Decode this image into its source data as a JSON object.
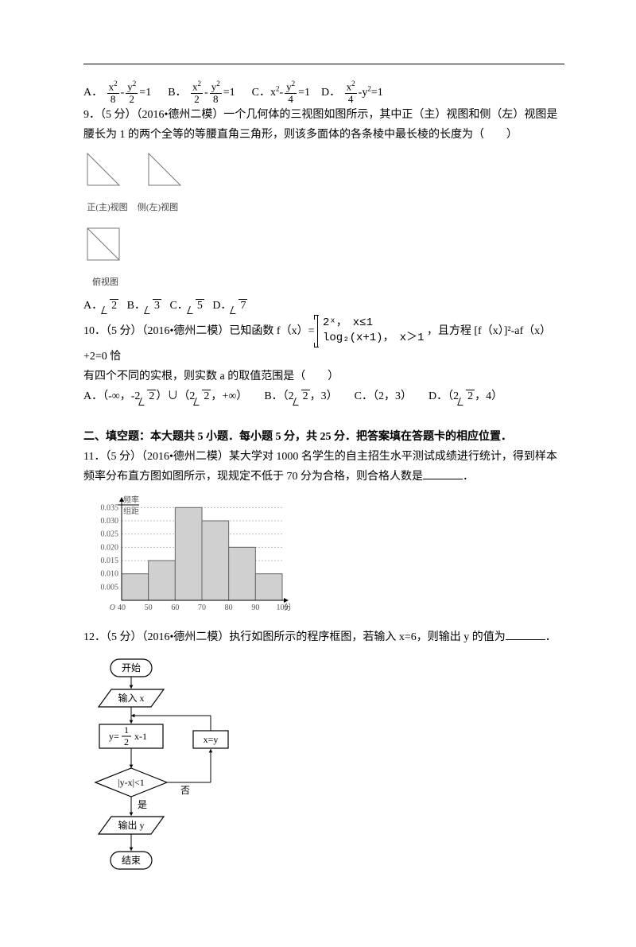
{
  "q8_options": {
    "A": {
      "prefix": "A．",
      "num": "x",
      "den1": "8",
      "num2": "y",
      "den2": "2",
      "eq": "=1"
    },
    "B": {
      "prefix": "B．",
      "num": "x",
      "den1": "2",
      "num2": "y",
      "den2": "8",
      "eq": "=1"
    },
    "C": {
      "prefix": "C．x",
      "num2": "y",
      "den2": "4",
      "eq": "=1"
    },
    "D": {
      "prefix": "D．",
      "num": "x",
      "den1": "4",
      "eq": "-y",
      "tail": "=1"
    }
  },
  "q9": {
    "text": "9．（5 分）（2016•德州二模）一个几何体的三视图如图所示，其中正（主）视图和侧（左）视图是腰长为 1 的两个全等的等腰直角三角形，则该多面体的各条棱中最长棱的长度为（　　）",
    "label_front": "正(主)视图",
    "label_side": "侧(左)视图",
    "label_top": "俯视图",
    "options": {
      "A": {
        "prefix": "A．",
        "val": "2"
      },
      "B": {
        "prefix": "B．",
        "val": "3"
      },
      "C": {
        "prefix": "C．",
        "val": "5"
      },
      "D": {
        "prefix": "D．",
        "val": "7"
      }
    }
  },
  "q10": {
    "text1": "10．（5 分）（2016•德州二模）已知函数 f（x）=",
    "piece1": "2ˣ，　x≤1",
    "piece2": "log₂(x+1)，　x＞1",
    "text2": "，且方程 [f（x）]²-af（x）+2=0 恰",
    "text3": "有四个不同的实根，则实数 a 的取值范围是（　　）",
    "options": {
      "A": {
        "prefix": "A．（-∞，-2",
        "sqrt": "2",
        "mid": "）∪（2",
        "sqrt2": "2",
        "suffix": "，+∞）"
      },
      "B": {
        "prefix": "B．（2",
        "sqrt": "2",
        "suffix": "，3）"
      },
      "C": {
        "prefix": "C．（2，3）"
      },
      "D": {
        "prefix": "D．（2",
        "sqrt": "2",
        "suffix": "，4）"
      }
    }
  },
  "section2": {
    "title": "二、填空题：本大题共 5 小题．每小题 5 分，共 25 分．把答案填在答题卡的相应位置．",
    "q11": "11．（5 分）（2016•德州二模）某大学对 1000 名学生的自主招生水平测试成绩进行统计，得到样本频率分布直方图如图所示，现规定不低于 70 分为合格，则合格人数是",
    "q12": "12．（5 分）（2016•德州二模）执行如图所示的程序框图，若输入 x=6，则输出 y 的值为"
  },
  "histogram": {
    "y_label_top": "频率",
    "y_label_bot": "组距",
    "y_ticks": [
      "0.035",
      "0.030",
      "0.025",
      "0.020",
      "0.015",
      "0.010",
      "0.005"
    ],
    "x_ticks": [
      "40",
      "50",
      "60",
      "70",
      "80",
      "90",
      "100"
    ],
    "x_label": "分数",
    "origin": "O",
    "heights": [
      0.01,
      0.015,
      0.035,
      0.03,
      0.02,
      0.01
    ],
    "bar_color": "#d0d0d0",
    "grid_color": "#bbbbbb",
    "axis_color": "#000000",
    "bin_starts": [
      40,
      50,
      60,
      70,
      80,
      90
    ],
    "bin_width": 10,
    "y_max": 0.036
  },
  "flowchart": {
    "start": "开始",
    "input": "输入 x",
    "calc_lhs": "y=",
    "calc_num": "1",
    "calc_den": "2",
    "calc_rhs": "x-1",
    "assign": "x=y",
    "cond": "|y-x|<1",
    "yes": "是",
    "no": "否",
    "output": "输出 y",
    "end": "结束",
    "line_color": "#000000"
  }
}
